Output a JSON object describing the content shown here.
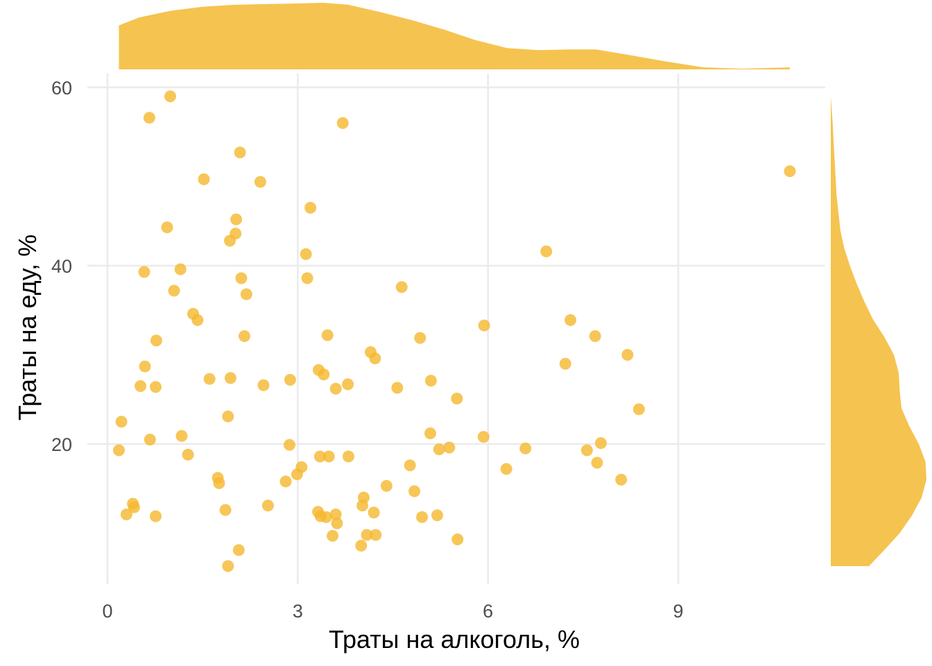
{
  "chart_data": {
    "type": "scatter",
    "marginal": "density",
    "xlabel": "Траты на алкоголь, %",
    "ylabel": "Траты на еду, %",
    "xlim": [
      -0.1,
      11.2
    ],
    "ylim": [
      6,
      62
    ],
    "xticks": [
      0,
      3,
      6,
      9
    ],
    "yticks": [
      20,
      40,
      60
    ],
    "grid": true,
    "colors": {
      "point": "#F5B82E",
      "density": "#F5C350",
      "grid": "#EBEBEB"
    },
    "x": [
      0.99,
      0.66,
      3.71,
      2.09,
      1.52,
      2.41,
      3.2,
      0.94,
      2.03,
      2.02,
      1.93,
      3.13,
      6.92,
      1.15,
      0.58,
      3.15,
      1.05,
      4.64,
      2.19,
      1.35,
      1.42,
      0.77,
      2.11,
      2.16,
      3.47,
      5.94,
      7.3,
      7.69,
      4.93,
      4.15,
      8.2,
      4.22,
      7.22,
      0.59,
      3.33,
      3.41,
      1.61,
      1.94,
      2.88,
      2.46,
      3.79,
      5.1,
      0.52,
      0.76,
      4.57,
      3.6,
      5.51,
      8.38,
      0.22,
      1.9,
      1.17,
      0.67,
      5.09,
      5.93,
      2.87,
      7.78,
      5.39,
      5.23,
      0.18,
      6.59,
      7.56,
      3.35,
      3.49,
      3.8,
      1.27,
      7.72,
      4.77,
      3.06,
      6.29,
      1.74,
      2.99,
      8.1,
      2.81,
      1.76,
      4.4,
      4.84,
      0.4,
      2.53,
      4.04,
      0.42,
      3.32,
      1.86,
      3.36,
      4.2,
      0.3,
      0.76,
      3.6,
      5.2,
      3.45,
      4.96,
      4.02,
      3.62,
      4.09,
      3.55,
      4.23,
      5.52,
      4.0,
      2.07,
      1.9,
      10.76
    ],
    "y": [
      59.0,
      56.6,
      56.0,
      52.7,
      49.7,
      49.4,
      46.5,
      44.3,
      45.2,
      43.6,
      42.8,
      41.3,
      41.6,
      39.6,
      39.3,
      38.6,
      37.2,
      37.6,
      36.8,
      34.6,
      33.9,
      31.6,
      38.6,
      32.1,
      32.2,
      33.3,
      33.9,
      32.1,
      31.9,
      30.3,
      30.0,
      29.6,
      29.0,
      28.7,
      28.3,
      27.8,
      27.3,
      27.4,
      27.2,
      26.6,
      26.7,
      27.1,
      26.5,
      26.4,
      26.3,
      26.2,
      25.1,
      23.9,
      22.5,
      23.1,
      20.9,
      20.5,
      21.2,
      20.8,
      19.9,
      20.1,
      19.6,
      19.4,
      19.3,
      19.5,
      19.3,
      18.6,
      18.6,
      18.6,
      18.8,
      17.9,
      17.6,
      17.4,
      17.2,
      16.2,
      16.6,
      16.0,
      15.8,
      15.6,
      15.3,
      14.7,
      13.3,
      13.1,
      14.0,
      12.9,
      12.4,
      12.6,
      11.9,
      12.3,
      12.1,
      11.9,
      12.1,
      12.0,
      11.8,
      11.8,
      13.1,
      11.1,
      9.8,
      9.7,
      9.8,
      9.3,
      8.6,
      8.1,
      6.3,
      50.6
    ],
    "x_density": [
      [
        0.18,
        0.66
      ],
      [
        0.5,
        0.78
      ],
      [
        1.0,
        0.88
      ],
      [
        1.5,
        0.94
      ],
      [
        2.0,
        0.97
      ],
      [
        2.5,
        0.98
      ],
      [
        3.0,
        0.99
      ],
      [
        3.4,
        1.0
      ],
      [
        3.8,
        0.97
      ],
      [
        4.3,
        0.86
      ],
      [
        4.8,
        0.74
      ],
      [
        5.3,
        0.6
      ],
      [
        5.8,
        0.44
      ],
      [
        6.3,
        0.32
      ],
      [
        6.8,
        0.29
      ],
      [
        7.3,
        0.3
      ],
      [
        7.7,
        0.3
      ],
      [
        8.2,
        0.22
      ],
      [
        8.8,
        0.12
      ],
      [
        9.4,
        0.03
      ],
      [
        10.0,
        0.01
      ],
      [
        10.76,
        0.03
      ]
    ],
    "y_density": [
      [
        6.3,
        0.4
      ],
      [
        8.0,
        0.55
      ],
      [
        10.0,
        0.72
      ],
      [
        12.0,
        0.85
      ],
      [
        14.0,
        0.95
      ],
      [
        16.0,
        1.0
      ],
      [
        18.0,
        0.99
      ],
      [
        20.0,
        0.92
      ],
      [
        22.0,
        0.82
      ],
      [
        24.0,
        0.74
      ],
      [
        26.0,
        0.72
      ],
      [
        28.0,
        0.71
      ],
      [
        30.0,
        0.66
      ],
      [
        32.0,
        0.56
      ],
      [
        34.0,
        0.44
      ],
      [
        36.0,
        0.35
      ],
      [
        38.0,
        0.27
      ],
      [
        40.0,
        0.2
      ],
      [
        42.0,
        0.14
      ],
      [
        44.0,
        0.1
      ],
      [
        46.0,
        0.08
      ],
      [
        48.0,
        0.06
      ],
      [
        50.0,
        0.05
      ],
      [
        52.0,
        0.04
      ],
      [
        54.0,
        0.03
      ],
      [
        56.0,
        0.02
      ],
      [
        59.0,
        0.0
      ]
    ]
  }
}
